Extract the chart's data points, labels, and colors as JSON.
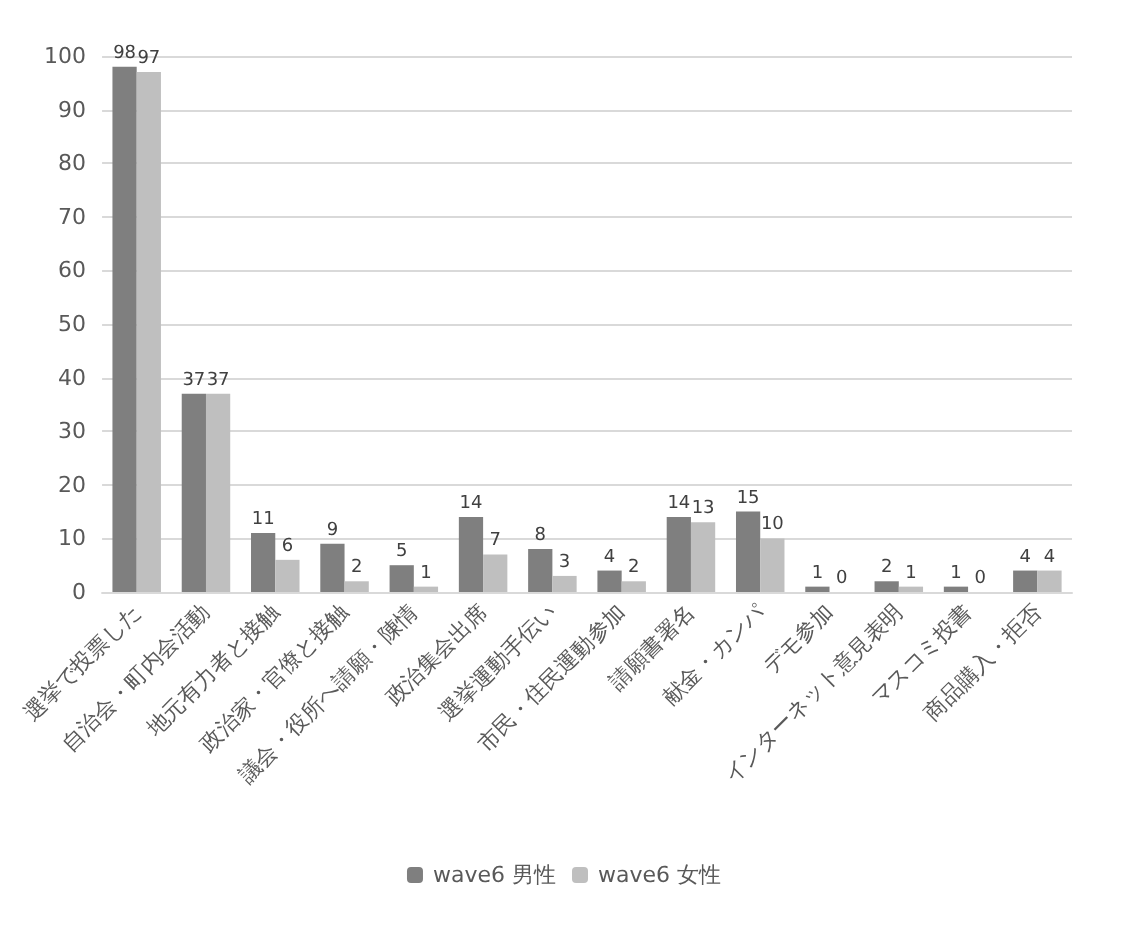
{
  "chart_data": {
    "type": "bar",
    "categories": [
      "選挙で投票した",
      "自治会・町内会活動",
      "地元有力者と接触",
      "政治家・官僚と接触",
      "議会・役所へ請願・陳情",
      "政治集会出席",
      "選挙運動手伝い",
      "市民・住民運動参加",
      "請願書署名",
      "献金・カンパ",
      "デモ参加",
      "インターネット意見表明",
      "マスコミ投書",
      "商品購入・拒否"
    ],
    "series": [
      {
        "name": "wave6 男性",
        "color": "#7f7f7f",
        "values": [
          98,
          37,
          11,
          9,
          5,
          14,
          8,
          4,
          14,
          15,
          1,
          2,
          1,
          4
        ]
      },
      {
        "name": "wave6 女性",
        "color": "#bfbfbf",
        "values": [
          97,
          37,
          6,
          2,
          1,
          7,
          3,
          2,
          13,
          10,
          0,
          1,
          0,
          4
        ]
      }
    ],
    "ylim": [
      0,
      100
    ],
    "yticks": [
      0,
      10,
      20,
      30,
      40,
      50,
      60,
      70,
      80,
      90,
      100
    ],
    "grid": "y",
    "legend": "bottom",
    "data_labels": true
  }
}
